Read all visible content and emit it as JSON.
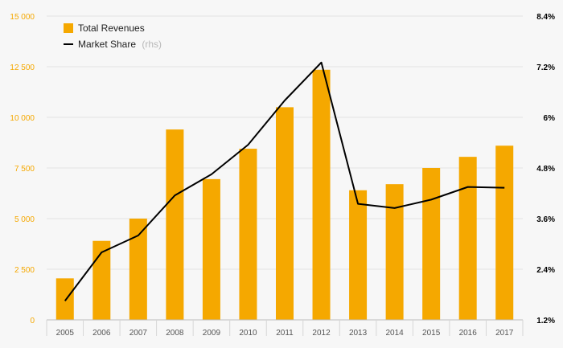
{
  "chart_data": {
    "type": "bar",
    "categories": [
      "2005",
      "2006",
      "2007",
      "2008",
      "2009",
      "2010",
      "2011",
      "2012",
      "2013",
      "2014",
      "2015",
      "2016",
      "2017"
    ],
    "series": [
      {
        "name": "Total Revenues",
        "type": "bar",
        "axis": "left",
        "color": "#f5a800",
        "values": [
          2050,
          3900,
          5000,
          9400,
          6950,
          8450,
          10500,
          12350,
          6400,
          6700,
          7500,
          8050,
          8600
        ]
      },
      {
        "name": "Market Share",
        "type": "line",
        "axis": "right",
        "color": "#000000",
        "values": [
          1.65,
          2.8,
          3.2,
          4.15,
          4.65,
          5.35,
          6.4,
          7.3,
          3.95,
          3.85,
          4.05,
          4.35,
          4.33
        ]
      }
    ],
    "legend": {
      "position": "top-left",
      "items": [
        {
          "label": "Total Revenues",
          "suffix": ""
        },
        {
          "label": "Market Share",
          "suffix": "(rhs)"
        }
      ]
    },
    "y_left": {
      "lim": [
        0,
        15000
      ],
      "ticks": [
        0,
        2500,
        5000,
        7500,
        10000,
        12500,
        15000
      ],
      "tick_labels": [
        "0",
        "2 500",
        "5 000",
        "7 500",
        "10 000",
        "12 500",
        "15 000"
      ],
      "color": "#f5a800"
    },
    "y_right": {
      "lim": [
        1.2,
        8.4
      ],
      "ticks": [
        1.2,
        2.4,
        3.6,
        4.8,
        6.0,
        7.2,
        8.4
      ],
      "tick_labels": [
        "1.2%",
        "2.4%",
        "3.6%",
        "4.8%",
        "6%",
        "7.2%",
        "8.4%"
      ],
      "color": "#000000"
    },
    "grid": true
  }
}
